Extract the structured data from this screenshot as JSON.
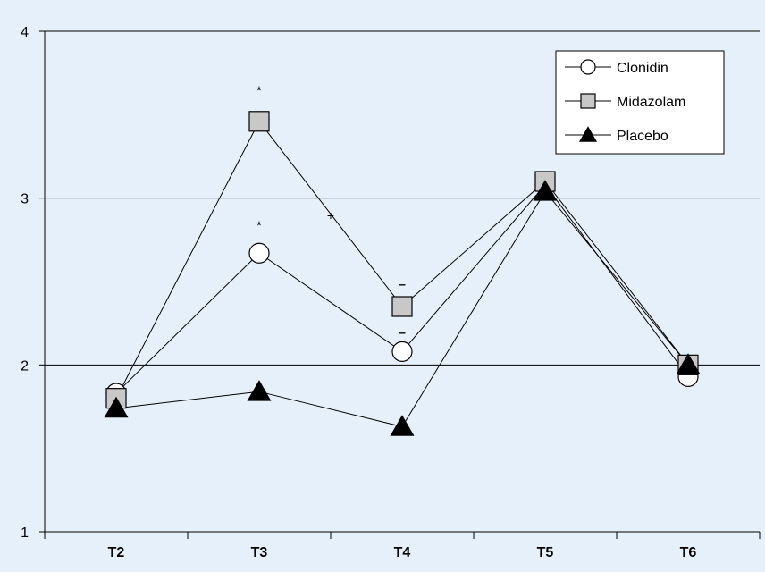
{
  "chart_data": {
    "type": "line",
    "categories": [
      "T2",
      "T3",
      "T4",
      "T5",
      "T6"
    ],
    "ylim": [
      1,
      4
    ],
    "yticks": [
      "1",
      "2",
      "3",
      "4"
    ],
    "grid": "horizontal",
    "legend_position": "top-right",
    "series": [
      {
        "name": "Clonidin",
        "marker": "circle",
        "values": [
          1.83,
          2.67,
          2.08,
          3.08,
          1.93
        ]
      },
      {
        "name": "Midazolam",
        "marker": "square",
        "values": [
          1.8,
          3.46,
          2.35,
          3.1,
          2.0
        ]
      },
      {
        "name": "Placebo",
        "marker": "triangle",
        "values": [
          1.74,
          1.84,
          1.63,
          3.04,
          2.0
        ]
      }
    ],
    "annotations": [
      {
        "text": "*",
        "x": "T3",
        "y": 3.62
      },
      {
        "text": "*",
        "x": "T3",
        "y": 2.81
      },
      {
        "text": "+",
        "x": 1.5,
        "y": 2.87
      },
      {
        "text": "–",
        "x": "T4",
        "y": 2.46
      },
      {
        "text": "–",
        "x": "T4",
        "y": 2.17
      }
    ]
  },
  "colors": {
    "background": "#e6f0fa",
    "line": "#000000",
    "circle_fill": "#ffffff",
    "square_fill": "#c8c8c8",
    "triangle_fill": "#000000",
    "legend_bg": "#ffffff"
  }
}
